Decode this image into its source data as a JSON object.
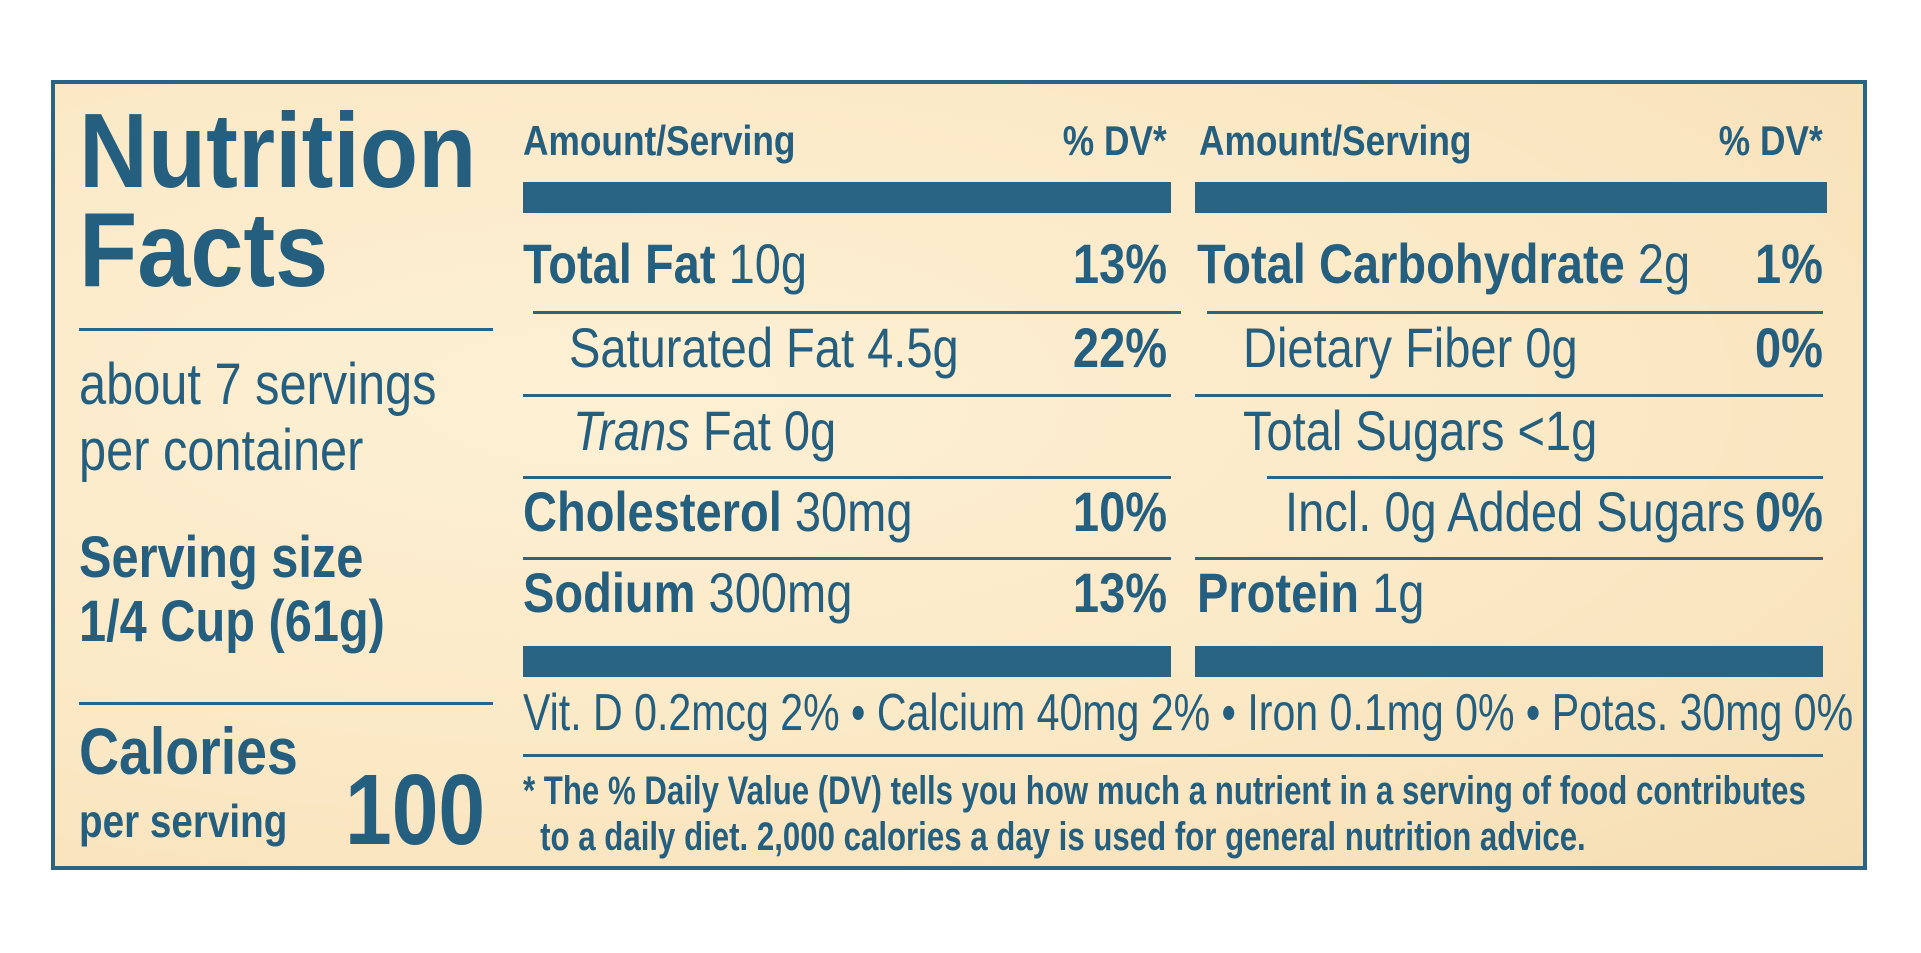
{
  "panel": {
    "title_line1": "Nutrition",
    "title_line2": "Facts",
    "servings_line1": "about 7 servings",
    "servings_line2": "per container",
    "serving_size_label": "Serving size",
    "serving_size_value": "1/4 Cup (61g)",
    "calories_label": "Calories",
    "calories_sub": "per serving",
    "calories_value": "100"
  },
  "columns": {
    "left": {
      "header_amount": "Amount/Serving",
      "header_dv": "% DV*",
      "rows": [
        {
          "name": "Total Fat",
          "amount": "10g",
          "dv": "13%"
        },
        {
          "name": "Saturated Fat 4.5g",
          "dv": "22%"
        },
        {
          "name_italic": "Trans",
          "name": "Fat 0g",
          "dv": ""
        },
        {
          "name": "Cholesterol",
          "amount": "30mg",
          "dv": "10%"
        },
        {
          "name": "Sodium",
          "amount": "300mg",
          "dv": "13%"
        }
      ]
    },
    "right": {
      "header_amount": "Amount/Serving",
      "header_dv": "% DV*",
      "rows": [
        {
          "name": "Total Carbohydrate",
          "amount": "2g",
          "dv": "1%"
        },
        {
          "name": "Dietary Fiber 0g",
          "dv": "0%"
        },
        {
          "name": "Total Sugars <1g",
          "dv": ""
        },
        {
          "name": "Incl. 0g Added Sugars",
          "dv": "0%"
        },
        {
          "name": "Protein",
          "amount": "1g",
          "dv": ""
        }
      ]
    }
  },
  "vitamins": "Vit. D 0.2mcg 2% • Calcium 40mg 2% • Iron 0.1mg 0% • Potas. 30mg 0%",
  "footnote_line1": "* The % Daily Value (DV) tells you how much a nutrient in a serving of food contributes",
  "footnote_line2": "to a daily diet. 2,000  calories a day is used for general nutrition advice.",
  "colors": {
    "ink": "#245f80",
    "background": "#fbe9c6"
  }
}
